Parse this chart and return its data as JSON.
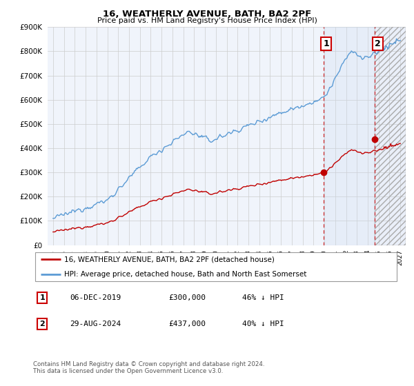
{
  "title": "16, WEATHERLY AVENUE, BATH, BA2 2PF",
  "subtitle": "Price paid vs. HM Land Registry's House Price Index (HPI)",
  "hpi_color": "#5b9bd5",
  "price_color": "#c00000",
  "ylim": [
    0,
    900000
  ],
  "yticks": [
    0,
    100000,
    200000,
    300000,
    400000,
    500000,
    600000,
    700000,
    800000,
    900000
  ],
  "year_start": 1995,
  "year_end": 2027,
  "transaction1_year": 2019.92,
  "transaction1_price": 300000,
  "transaction2_year": 2024.65,
  "transaction2_price": 437000,
  "legend_entry1": "16, WEATHERLY AVENUE, BATH, BA2 2PF (detached house)",
  "legend_entry2": "HPI: Average price, detached house, Bath and North East Somerset",
  "table_row1": [
    "1",
    "06-DEC-2019",
    "£300,000",
    "46% ↓ HPI"
  ],
  "table_row2": [
    "2",
    "29-AUG-2024",
    "£437,000",
    "40% ↓ HPI"
  ],
  "footnote": "Contains HM Land Registry data © Crown copyright and database right 2024.\nThis data is licensed under the Open Government Licence v3.0."
}
